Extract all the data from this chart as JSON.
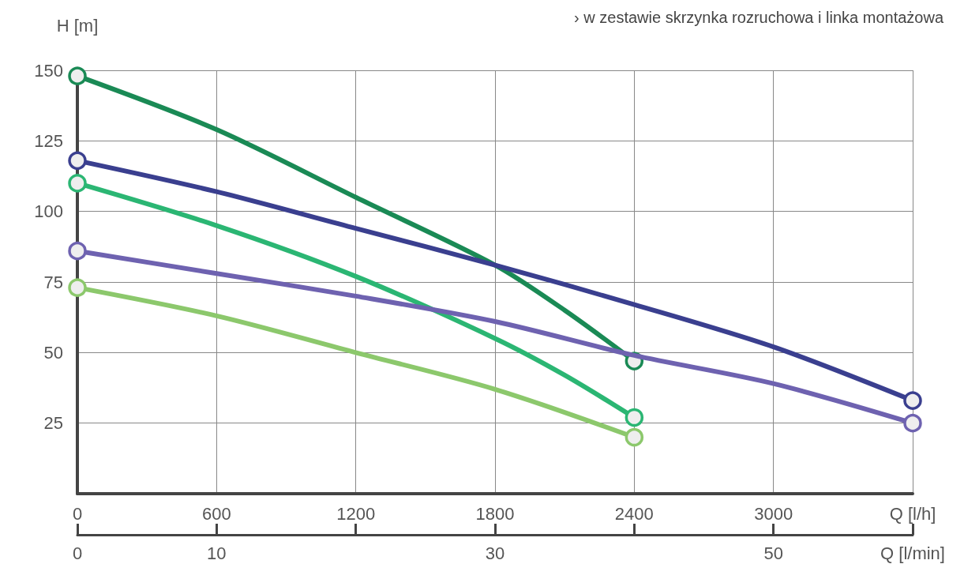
{
  "chart_data": {
    "type": "line",
    "ylabel": "H [m]",
    "annotations": [
      "› w zestawie skrzynka rozruchowa i linka montażowa"
    ],
    "xlim": [
      0,
      3600
    ],
    "xticks": [
      0,
      600,
      1200,
      1800,
      2400,
      3000,
      {
        "value": 3600,
        "label": "Q [l/h]"
      }
    ],
    "x2lim": [
      0,
      60
    ],
    "x2ticks": [
      0,
      10,
      {
        "value": 20,
        "label": null
      },
      30,
      {
        "value": 40,
        "label": null
      },
      50,
      {
        "value": 60,
        "label": "Q [l/min]"
      }
    ],
    "ylim": [
      0,
      150
    ],
    "yticks": [
      25,
      50,
      75,
      100,
      125,
      150
    ],
    "grid": true,
    "line_style": "solid",
    "series": [
      {
        "color": "#1a8a55",
        "x": [
          0,
          600,
          1200,
          1800,
          2100,
          2400
        ],
        "values": [
          148,
          129,
          105,
          81,
          65,
          47
        ]
      },
      {
        "color": "#3a3f8f",
        "x": [
          0,
          600,
          1200,
          1800,
          2400,
          3000,
          3600
        ],
        "values": [
          118,
          107,
          94,
          81,
          67,
          52,
          33
        ]
      },
      {
        "color": "#2bb673",
        "x": [
          0,
          600,
          1200,
          1800,
          2100,
          2400
        ],
        "values": [
          110,
          95,
          77,
          55,
          42,
          27
        ]
      },
      {
        "color": "#6e62b0",
        "x": [
          0,
          600,
          1200,
          1800,
          2400,
          3000,
          3600
        ],
        "values": [
          86,
          78,
          70,
          61,
          49,
          39,
          25
        ]
      },
      {
        "color": "#8cc86c",
        "x": [
          0,
          600,
          1200,
          1800,
          2400
        ],
        "values": [
          73,
          63,
          50,
          37,
          20
        ]
      }
    ]
  }
}
